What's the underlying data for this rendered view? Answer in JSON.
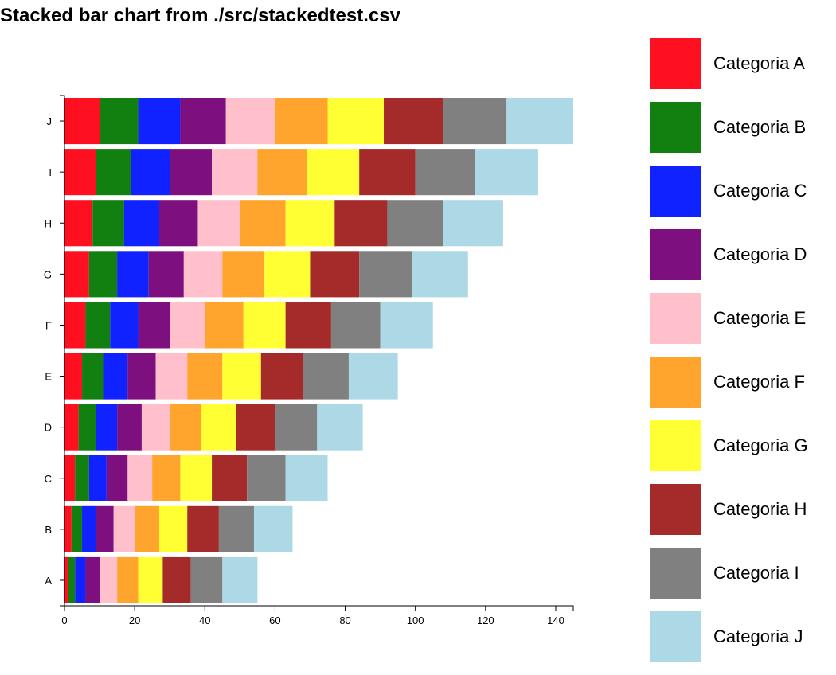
{
  "chart_data": {
    "type": "bar",
    "orientation": "horizontal",
    "stacked": true,
    "title": "Stacked bar chart from ./src/stackedtest.csv",
    "xlabel": "",
    "ylabel": "",
    "xlim": [
      0,
      145
    ],
    "x_ticks": [
      0,
      20,
      40,
      60,
      80,
      100,
      120,
      140
    ],
    "grid": false,
    "legend_position": "right",
    "categories": [
      "A",
      "B",
      "C",
      "D",
      "E",
      "F",
      "G",
      "H",
      "I",
      "J"
    ],
    "series": [
      {
        "name": "Categoria A",
        "color": "#ff1020",
        "values": [
          1,
          2,
          3,
          4,
          5,
          6,
          7,
          8,
          9,
          10
        ]
      },
      {
        "name": "Categoria B",
        "color": "#118011",
        "values": [
          2,
          3,
          4,
          5,
          6,
          7,
          8,
          9,
          10,
          11
        ]
      },
      {
        "name": "Categoria C",
        "color": "#0f22ff",
        "values": [
          3,
          4,
          5,
          6,
          7,
          8,
          9,
          10,
          11,
          12
        ]
      },
      {
        "name": "Categoria D",
        "color": "#7e0f7e",
        "values": [
          4,
          5,
          6,
          7,
          8,
          9,
          10,
          11,
          12,
          13
        ]
      },
      {
        "name": "Categoria E",
        "color": "#ffc0cb",
        "values": [
          5,
          6,
          7,
          8,
          9,
          10,
          11,
          12,
          13,
          14
        ]
      },
      {
        "name": "Categoria F",
        "color": "#ffa42c",
        "values": [
          6,
          7,
          8,
          9,
          10,
          11,
          12,
          13,
          14,
          15
        ]
      },
      {
        "name": "Categoria G",
        "color": "#ffff33",
        "values": [
          7,
          8,
          9,
          10,
          11,
          12,
          13,
          14,
          15,
          16
        ]
      },
      {
        "name": "Categoria H",
        "color": "#a52a2a",
        "values": [
          8,
          9,
          10,
          11,
          12,
          13,
          14,
          15,
          16,
          17
        ]
      },
      {
        "name": "Categoria I",
        "color": "#808080",
        "values": [
          9,
          10,
          11,
          12,
          13,
          14,
          15,
          16,
          17,
          18
        ]
      },
      {
        "name": "Categoria J",
        "color": "#add8e6",
        "values": [
          10,
          11,
          12,
          13,
          14,
          15,
          16,
          17,
          18,
          19
        ]
      }
    ]
  }
}
